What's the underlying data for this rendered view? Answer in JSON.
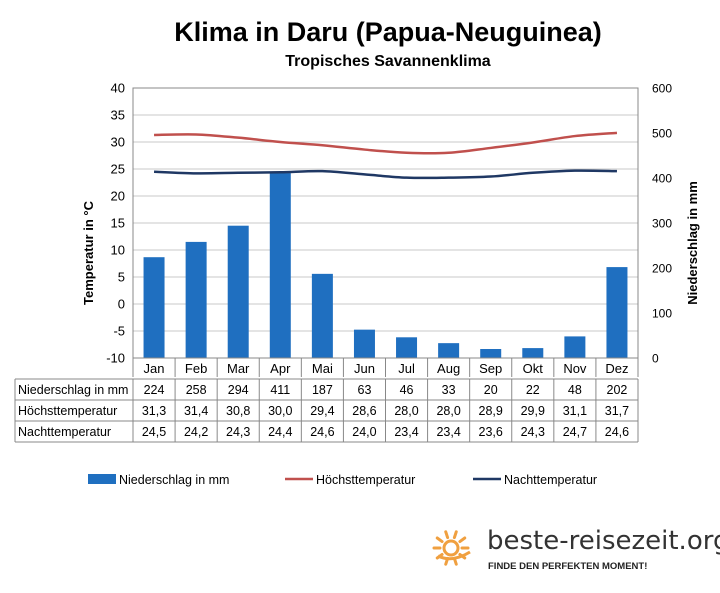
{
  "chart_data": {
    "type": "bar+line",
    "title": "Klima in Daru (Papua-Neuguinea)",
    "subtitle": "Tropisches Savannenklima",
    "categories": [
      "Jan",
      "Feb",
      "Mar",
      "Apr",
      "Mai",
      "Jun",
      "Jul",
      "Aug",
      "Sep",
      "Okt",
      "Nov",
      "Dez"
    ],
    "y_left": {
      "label": "Temperatur in °C",
      "range": [
        -10,
        40
      ],
      "ticks": [
        "-10",
        "-5",
        "0",
        "5",
        "10",
        "15",
        "20",
        "25",
        "30",
        "35",
        "40"
      ]
    },
    "y_right": {
      "label": "Niederschlag in mm",
      "range": [
        0,
        600
      ],
      "ticks": [
        "0",
        "100",
        "200",
        "300",
        "400",
        "500",
        "600"
      ]
    },
    "series": [
      {
        "name": "Niederschlag in mm",
        "type": "bar",
        "axis": "right",
        "color": "#1f6fc0",
        "values": [
          224,
          258,
          294,
          411,
          187,
          63,
          46,
          33,
          20,
          22,
          48,
          202
        ],
        "labels": [
          "224",
          "258",
          "294",
          "411",
          "187",
          "63",
          "46",
          "33",
          "20",
          "22",
          "48",
          "202"
        ]
      },
      {
        "name": "Höchsttemperatur",
        "type": "line",
        "axis": "left",
        "color": "#c0504d",
        "values": [
          31.3,
          31.4,
          30.8,
          30.0,
          29.4,
          28.6,
          28.0,
          28.0,
          28.9,
          29.9,
          31.1,
          31.7
        ],
        "labels": [
          "31,3",
          "31,4",
          "30,8",
          "30,0",
          "29,4",
          "28,6",
          "28,0",
          "28,0",
          "28,9",
          "29,9",
          "31,1",
          "31,7"
        ]
      },
      {
        "name": "Nachttemperatur",
        "type": "line",
        "axis": "left",
        "color": "#1f3864",
        "values": [
          24.5,
          24.2,
          24.3,
          24.4,
          24.6,
          24.0,
          23.4,
          23.4,
          23.6,
          24.3,
          24.7,
          24.6
        ],
        "labels": [
          "24,5",
          "24,2",
          "24,3",
          "24,4",
          "24,6",
          "24,0",
          "23,4",
          "23,4",
          "23,6",
          "24,3",
          "24,7",
          "24,6"
        ]
      }
    ],
    "grid": true,
    "legend": "bottom"
  },
  "branding": {
    "site": "beste-reisezeit.org",
    "slogan": "FINDE DEN PERFEKTEN MOMENT!",
    "logo_color": "#f0a040"
  }
}
